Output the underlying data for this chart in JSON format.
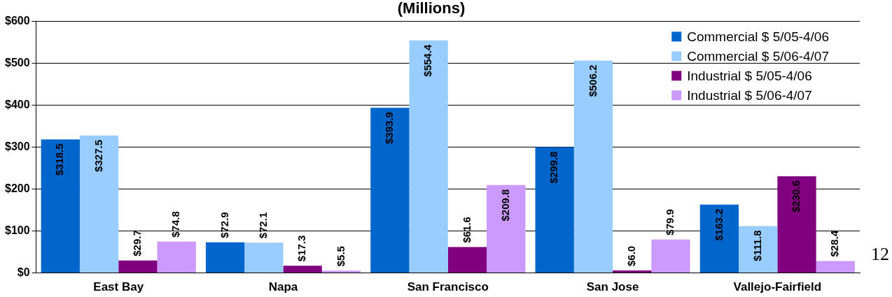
{
  "chart_data": {
    "type": "bar",
    "title": "(Millions)",
    "categories": [
      "East Bay",
      "Napa",
      "San Francisco",
      "San Jose",
      "Vallejo-Fairfield"
    ],
    "series": [
      {
        "name": "Commercial $ 5/05-4/06",
        "color": "#0066cc",
        "values": [
          318.5,
          72.9,
          393.9,
          299.8,
          163.2
        ],
        "value_labels": [
          "$318.5",
          "$72.9",
          "$393.9",
          "$299.8",
          "$163.2"
        ]
      },
      {
        "name": "Commercial $ 5/06-4/07",
        "color": "#99ccff",
        "values": [
          327.5,
          72.1,
          554.4,
          506.2,
          111.8
        ],
        "value_labels": [
          "$327.5",
          "$72.1",
          "$554.4",
          "$506.2",
          "$111.8"
        ]
      },
      {
        "name": "Industrial $ 5/05-4/06",
        "color": "#800080",
        "values": [
          29.7,
          17.3,
          61.6,
          6.0,
          230.6
        ],
        "value_labels": [
          "$29.7",
          "$17.3",
          "$61.6",
          "$6.0",
          "$230.6"
        ]
      },
      {
        "name": "Industrial $ 5/06-4/07",
        "color": "#cc99ff",
        "values": [
          74.8,
          5.5,
          209.8,
          79.9,
          28.4
        ],
        "value_labels": [
          "$74.8",
          "$5.5",
          "$209.8",
          "$79.9",
          "$28.4"
        ]
      }
    ],
    "ylim": [
      0,
      600
    ],
    "yticks": [
      {
        "value": 0,
        "label": "$0"
      },
      {
        "value": 100,
        "label": "$100"
      },
      {
        "value": 200,
        "label": "$200"
      },
      {
        "value": 300,
        "label": "$300"
      },
      {
        "value": 400,
        "label": "$400"
      },
      {
        "value": 500,
        "label": "$500"
      },
      {
        "value": 600,
        "label": "$600"
      }
    ],
    "grid": "y",
    "legend": "top right",
    "annotations": [
      "12"
    ]
  }
}
